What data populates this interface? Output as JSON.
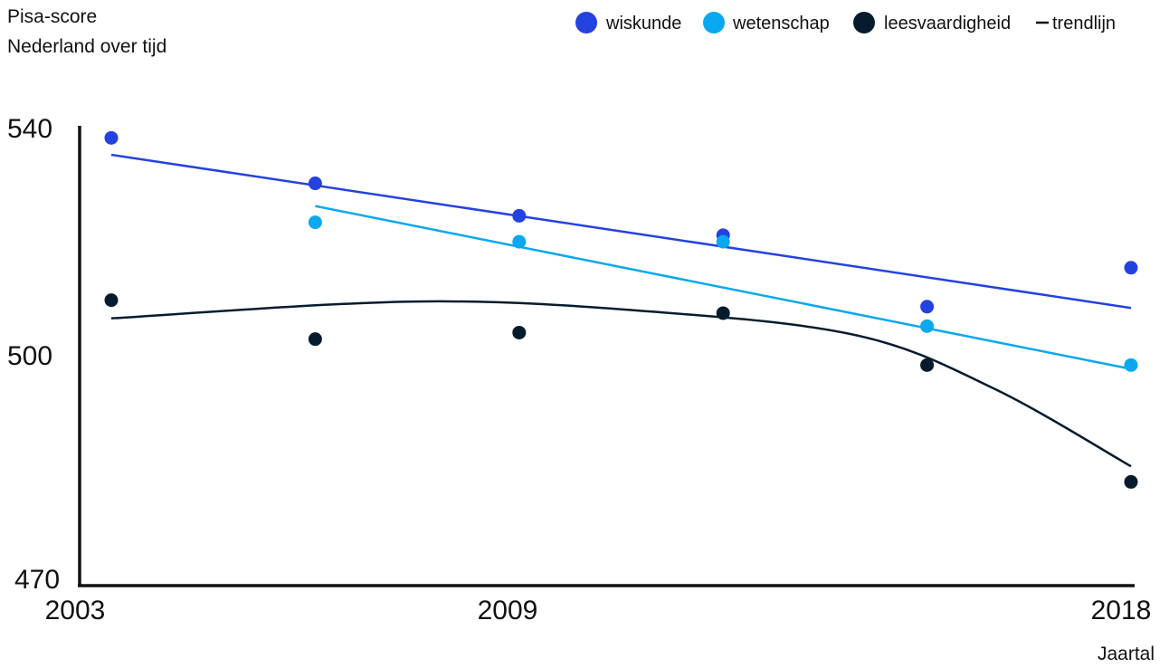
{
  "chart_data": {
    "type": "scatter",
    "title": "Pisa-score",
    "subtitle": "Nederland over tijd",
    "xlabel": "Jaartal",
    "ylabel": "",
    "x_ticks": [
      "2003",
      "2009",
      "2018"
    ],
    "y_ticks": [
      "540",
      "500",
      "470"
    ],
    "xlim": [
      2003,
      2018
    ],
    "ylim": [
      470,
      540
    ],
    "grid": false,
    "legend_position": "top-right",
    "legend": [
      {
        "label": "wiskunde",
        "marker": "dot",
        "color": "#2442e0"
      },
      {
        "label": "wetenschap",
        "marker": "dot",
        "color": "#0aa8f0"
      },
      {
        "label": "leesvaardigheid",
        "marker": "dot",
        "color": "#061c2e"
      },
      {
        "label": "trendlijn",
        "marker": "line",
        "color": "#111111"
      }
    ],
    "series": [
      {
        "name": "wiskunde",
        "color": "#2442e0",
        "x": [
          2003,
          2006,
          2009,
          2012,
          2015,
          2018
        ],
        "y": [
          538,
          531,
          526,
          523,
          512,
          518
        ],
        "trend": {
          "kind": "linear",
          "x": [
            2003,
            2018
          ],
          "y": [
            535.4,
            511.8
          ]
        }
      },
      {
        "name": "wetenschap",
        "color": "#0aa8f0",
        "x": [
          2006,
          2009,
          2012,
          2015,
          2018
        ],
        "y": [
          525,
          522,
          522,
          509,
          503
        ],
        "trend": {
          "kind": "linear",
          "x": [
            2006,
            2018
          ],
          "y": [
            527.5,
            502.4
          ]
        }
      },
      {
        "name": "leesvaardigheid",
        "color": "#061c2e",
        "x": [
          2003,
          2006,
          2009,
          2012,
          2015,
          2018
        ],
        "y": [
          513,
          507,
          508,
          511,
          503,
          485
        ],
        "trend": {
          "kind": "quadratic",
          "x": [
            2003,
            2007.5,
            2011,
            2014,
            2016,
            2018
          ],
          "y": [
            510.2,
            512.8,
            511.2,
            507.5,
            499.3,
            487.4
          ]
        }
      }
    ]
  }
}
